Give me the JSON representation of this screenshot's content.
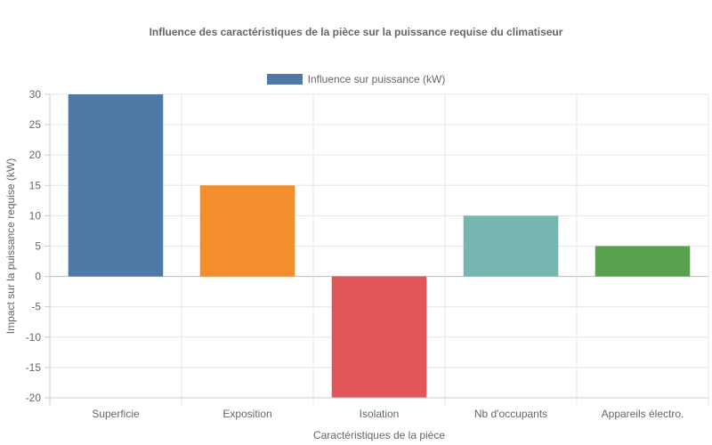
{
  "chart_data": {
    "type": "bar",
    "title": "Influence des caractéristiques de la pièce sur la puissance requise du climatiseur",
    "xlabel": "Caractéristiques de la pièce",
    "ylabel": "Impact sur la puissance requise (kW)",
    "categories": [
      "Superficie",
      "Exposition",
      "Isolation",
      "Nb d'occupants",
      "Appareils électro."
    ],
    "series": [
      {
        "name": "Influence sur puissance (kW)",
        "values": [
          30,
          15,
          -20,
          10,
          5
        ]
      }
    ],
    "bar_colors": [
      "#4e79a7",
      "#f28e2b",
      "#e15759",
      "#76b7b2",
      "#59a14f"
    ],
    "legend_color": "#4e79a7",
    "ylim": [
      -20,
      30
    ],
    "yticks": [
      30,
      25,
      20,
      15,
      10,
      5,
      0,
      -5,
      -10,
      -15,
      -20
    ],
    "grid": true,
    "legend_position": "top"
  }
}
